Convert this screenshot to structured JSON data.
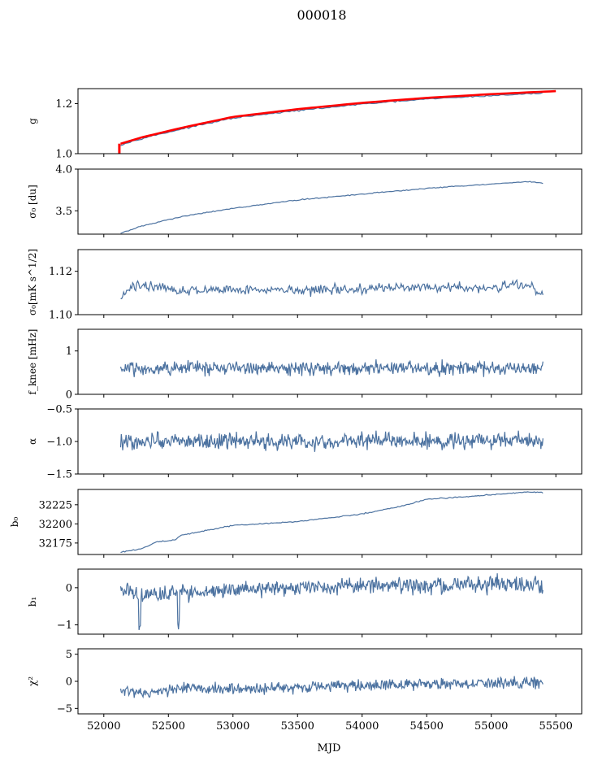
{
  "figure": {
    "title": "000018",
    "xlabel": "MJD"
  },
  "colors": {
    "series": "#4c72a0",
    "fit": "#ff0000",
    "axis": "#000000",
    "background": "#ffffff"
  },
  "chart_data": [
    {
      "type": "line",
      "ylabel": "g",
      "xlim": [
        51800,
        55700
      ],
      "ylim": [
        1.0,
        1.26
      ],
      "yticks": [
        1.0,
        1.2
      ],
      "ytick_labels": [
        "1.0",
        "1.2"
      ],
      "series": [
        {
          "color_key": "series",
          "x": [
            52130,
            52300,
            52600,
            53000,
            53500,
            54000,
            54500,
            55000,
            55400
          ],
          "y": [
            1.035,
            1.062,
            1.098,
            1.142,
            1.172,
            1.198,
            1.218,
            1.232,
            1.242
          ]
        },
        {
          "color_key": "fit",
          "x": [
            52130,
            52300,
            52600,
            53000,
            53500,
            54000,
            54500,
            55000,
            55500
          ],
          "y": [
            1.04,
            1.066,
            1.103,
            1.147,
            1.178,
            1.203,
            1.223,
            1.238,
            1.25
          ]
        },
        {
          "color_key": "fit",
          "x": [
            52120,
            52120
          ],
          "y": [
            1.0,
            1.04
          ]
        }
      ]
    },
    {
      "type": "line",
      "ylabel": "σ₀ [du]",
      "xlim": [
        51800,
        55700
      ],
      "ylim": [
        3.22,
        4.0
      ],
      "yticks": [
        3.5,
        4.0
      ],
      "ytick_labels": [
        "3.5",
        "4.0"
      ],
      "series": [
        {
          "color_key": "series",
          "x": [
            52130,
            52300,
            52600,
            53000,
            53500,
            54000,
            54500,
            55000,
            55300,
            55400
          ],
          "y": [
            3.23,
            3.32,
            3.43,
            3.53,
            3.63,
            3.7,
            3.77,
            3.82,
            3.85,
            3.83
          ]
        }
      ]
    },
    {
      "type": "line",
      "ylabel": "σ₀[mK s^1/2]",
      "xlim": [
        51800,
        55700
      ],
      "ylim": [
        1.1,
        1.13
      ],
      "yticks": [
        1.1,
        1.12
      ],
      "ytick_labels": [
        "1.10",
        "1.12"
      ],
      "series": [
        {
          "color_key": "series",
          "x": [
            52130,
            52200,
            52300,
            52600,
            53000,
            53500,
            54000,
            54500,
            55000,
            55200,
            55300,
            55400
          ],
          "y": [
            1.107,
            1.112,
            1.114,
            1.111,
            1.112,
            1.111,
            1.112,
            1.113,
            1.112,
            1.114,
            1.113,
            1.11
          ]
        }
      ]
    },
    {
      "type": "line",
      "ylabel": "f_knee [mHz]",
      "xlim": [
        51800,
        55700
      ],
      "ylim": [
        0,
        1.5
      ],
      "yticks": [
        0,
        1
      ],
      "ytick_labels": [
        "0",
        "1"
      ],
      "series": [
        {
          "color_key": "series",
          "x": [
            52130,
            52600,
            53000,
            53500,
            54000,
            54500,
            55000,
            55400
          ],
          "y": [
            0.6,
            0.62,
            0.6,
            0.61,
            0.6,
            0.6,
            0.61,
            0.62
          ]
        }
      ]
    },
    {
      "type": "line",
      "ylabel": "α",
      "xlim": [
        51800,
        55700
      ],
      "ylim": [
        -1.5,
        -0.5
      ],
      "yticks": [
        -1.5,
        -1.0,
        -0.5
      ],
      "ytick_labels": [
        "−1.5",
        "−1.0",
        "−0.5"
      ],
      "series": [
        {
          "color_key": "series",
          "x": [
            52130,
            52600,
            53000,
            53500,
            54000,
            54500,
            55000,
            55400
          ],
          "y": [
            -1.0,
            -0.99,
            -1.0,
            -1.01,
            -0.99,
            -1.0,
            -0.99,
            -1.0
          ]
        }
      ]
    },
    {
      "type": "line",
      "ylabel": "b₀",
      "xlim": [
        51800,
        55700
      ],
      "ylim": [
        32160,
        32245
      ],
      "yticks": [
        32175,
        32200,
        32225
      ],
      "ytick_labels": [
        "32175",
        "32200",
        "32225"
      ],
      "series": [
        {
          "color_key": "series",
          "x": [
            52130,
            52300,
            52400,
            52550,
            52600,
            53000,
            53500,
            54000,
            54300,
            54500,
            55000,
            55300,
            55400
          ],
          "y": [
            32163,
            32168,
            32176,
            32179,
            32185,
            32198,
            32203,
            32213,
            32223,
            32232,
            32238,
            32242,
            32241
          ]
        }
      ]
    },
    {
      "type": "line",
      "ylabel": "b₁",
      "xlim": [
        51800,
        55700
      ],
      "ylim": [
        -1.25,
        0.5
      ],
      "yticks": [
        -1,
        0
      ],
      "ytick_labels": [
        "−1",
        "0"
      ],
      "series": [
        {
          "color_key": "series",
          "x": [
            52130,
            52280,
            52580,
            53000,
            53500,
            54000,
            54500,
            55000,
            55400
          ],
          "y": [
            -0.05,
            -0.2,
            -0.15,
            -0.05,
            0.0,
            0.05,
            0.05,
            0.1,
            0.08
          ]
        }
      ]
    },
    {
      "type": "line",
      "ylabel": "χ²",
      "xlim": [
        51800,
        55700
      ],
      "ylim": [
        -6,
        6
      ],
      "yticks": [
        -5,
        0,
        5
      ],
      "ytick_labels": [
        "−5",
        "0",
        "5"
      ],
      "xticks": [
        52000,
        52500,
        53000,
        53500,
        54000,
        54500,
        55000,
        55500
      ],
      "xtick_labels": [
        "52000",
        "52500",
        "53000",
        "53500",
        "54000",
        "54500",
        "55000",
        "55500"
      ],
      "series": [
        {
          "color_key": "series",
          "x": [
            52130,
            52300,
            52600,
            53000,
            53500,
            54000,
            54500,
            55000,
            55400
          ],
          "y": [
            -1.8,
            -2.3,
            -1.3,
            -1.5,
            -1.0,
            -0.8,
            -0.5,
            -0.3,
            -0.4
          ]
        }
      ]
    }
  ]
}
